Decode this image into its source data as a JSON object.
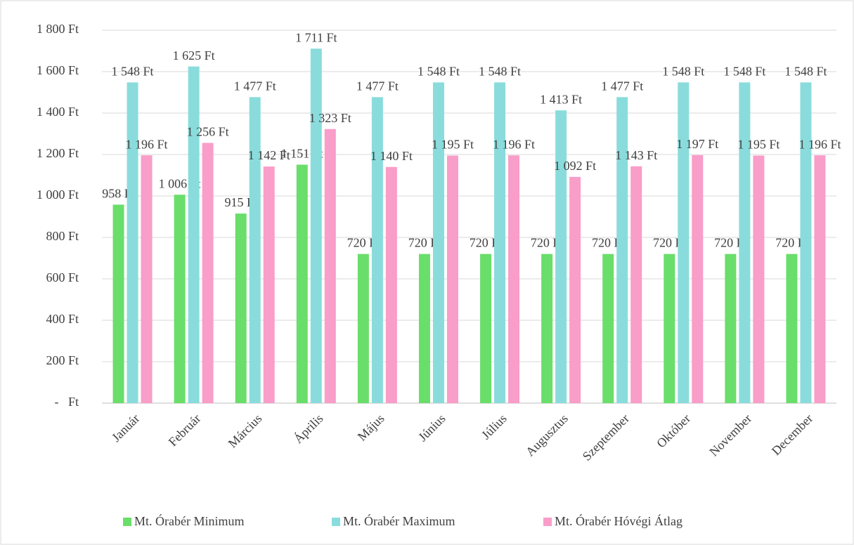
{
  "chart_data": {
    "type": "bar",
    "categories": [
      "Január",
      "Február",
      "Március",
      "Április",
      "Május",
      "Június",
      "Július",
      "Augusztus",
      "Szeptember",
      "Október",
      "November",
      "December"
    ],
    "series": [
      {
        "name": "Mt. Órabér Minimum",
        "color": "#6ade6a",
        "values": [
          958,
          1006,
          915,
          1151,
          720,
          720,
          720,
          720,
          720,
          720,
          720,
          720
        ],
        "value_labels": [
          "958 Ft",
          "1 006 Ft",
          "915 Ft",
          "1 151 Ft",
          "720 Ft",
          "720 Ft",
          "720 Ft",
          "720 Ft",
          "720 Ft",
          "720 Ft",
          "720 Ft",
          "720 Ft"
        ]
      },
      {
        "name": "Mt. Órabér Maximum",
        "color": "#8adcdc",
        "values": [
          1548,
          1625,
          1477,
          1711,
          1477,
          1548,
          1548,
          1413,
          1477,
          1548,
          1548,
          1548
        ],
        "value_labels": [
          "1 548 Ft",
          "1 625 Ft",
          "1 477 Ft",
          "1 711 Ft",
          "1 477 Ft",
          "1 548 Ft",
          "1 548 Ft",
          "1 413 Ft",
          "1 477 Ft",
          "1 548 Ft",
          "1 548 Ft",
          "1 548 Ft"
        ]
      },
      {
        "name": "Mt. Órabér Hóvégi Átlag",
        "color": "#f99dc9",
        "values": [
          1196,
          1256,
          1142,
          1323,
          1140,
          1195,
          1196,
          1092,
          1143,
          1197,
          1195,
          1196
        ],
        "value_labels": [
          "1 196 Ft",
          "1 256 Ft",
          "1 142 Ft",
          "1 323 Ft",
          "1 140 Ft",
          "1 195 Ft",
          "1 196 Ft",
          "1 092 Ft",
          "1 143 Ft",
          "1 197 Ft",
          "1 195 Ft",
          "1 196 Ft"
        ]
      }
    ],
    "ylim": [
      0,
      1800
    ],
    "yticks": [
      {
        "value": 0,
        "label": "-   Ft"
      },
      {
        "value": 200,
        "label": "200 Ft"
      },
      {
        "value": 400,
        "label": "400 Ft"
      },
      {
        "value": 600,
        "label": "600 Ft"
      },
      {
        "value": 800,
        "label": "800 Ft"
      },
      {
        "value": 1000,
        "label": "1 000 Ft"
      },
      {
        "value": 1200,
        "label": "1 200 Ft"
      },
      {
        "value": 1400,
        "label": "1 400 Ft"
      },
      {
        "value": 1600,
        "label": "1 600 Ft"
      },
      {
        "value": 1800,
        "label": "1 800 Ft"
      }
    ],
    "grid": true,
    "legend": "bottom"
  }
}
